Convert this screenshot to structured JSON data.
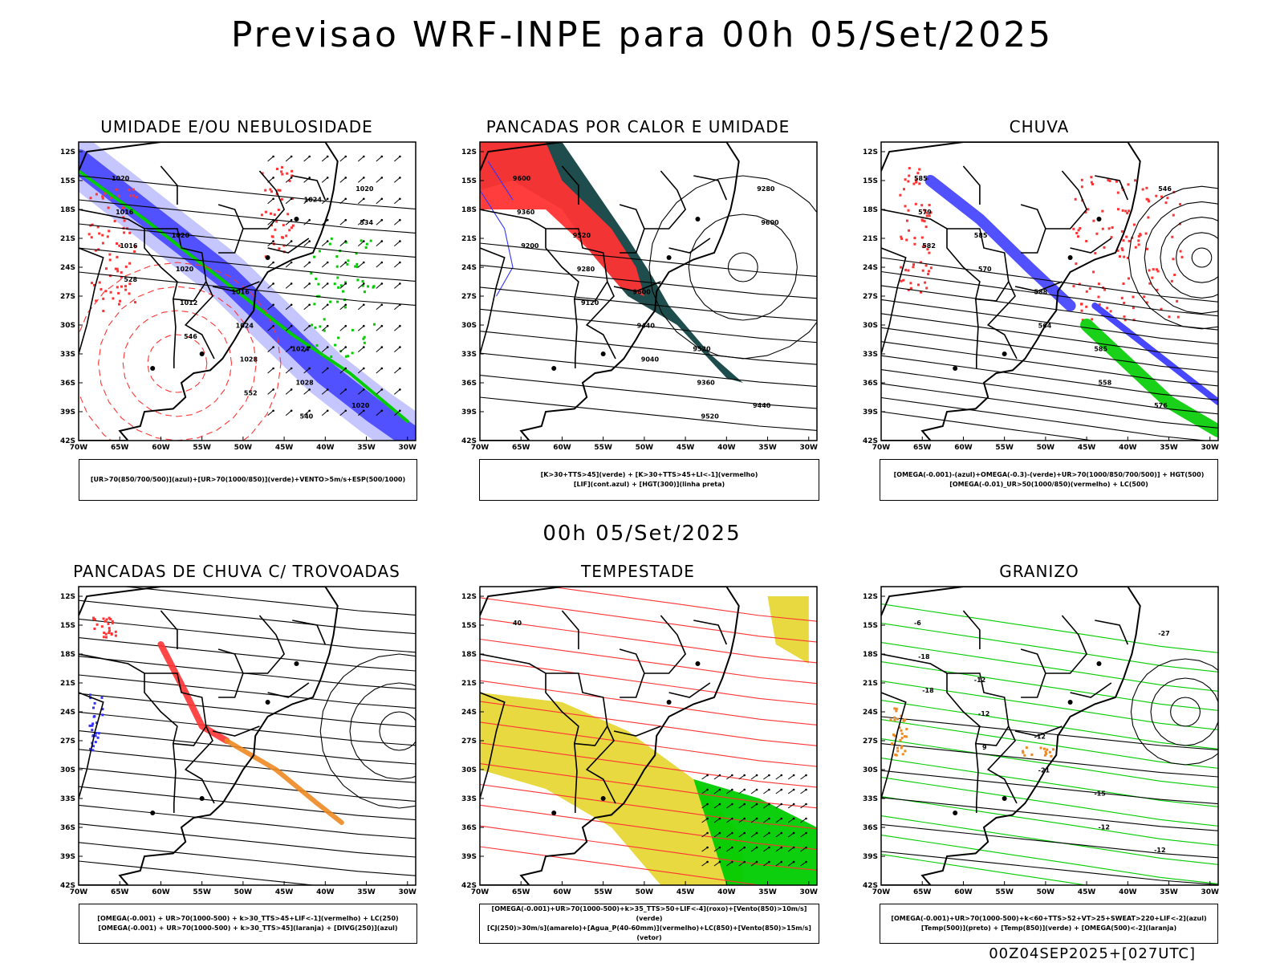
{
  "header": {
    "title": "Previsao WRF-INPE  para 00h 05/Set/2025",
    "mid_title": "00h 05/Set/2025",
    "footer": "00Z04SEP2025+[027UTC]"
  },
  "axes": {
    "lat_labels": [
      "12S",
      "15S",
      "18S",
      "21S",
      "24S",
      "27S",
      "30S",
      "33S",
      "36S",
      "39S",
      "42S"
    ],
    "lon_labels": [
      "70W",
      "65W",
      "60W",
      "55W",
      "50W",
      "45W",
      "40W",
      "35W",
      "30W"
    ]
  },
  "panels": [
    {
      "title": "UMIDADE E/OU NEBULOSIDADE",
      "legend": [
        "[UR>70(850/700/500)](azul)+[UR>70(1000/850)](verde)+VENTO>5m/s+ESP(500/1000)"
      ],
      "contour_labels": [
        "1020",
        "1020",
        "1016",
        "1024",
        "1020",
        "1016",
        "1020",
        "1024",
        "1028",
        "1020",
        "1016",
        "1012",
        "1028",
        "540",
        "534",
        "528",
        "546",
        "552",
        "1024"
      ]
    },
    {
      "title": "PANCADAS POR CALOR E UMIDADE",
      "legend": [
        "[K>30+TTS>45](verde) + [K>30+TTS>45+LI<-1](vermelho)",
        "[LIF](cont.azul) + [HGT(300)](linha preta)"
      ],
      "contour_labels": [
        "9600",
        "9520",
        "9600",
        "9520",
        "9440",
        "9360",
        "9280",
        "9440",
        "9360",
        "9280",
        "9200",
        "9120",
        "9040",
        "9520",
        "9600"
      ]
    },
    {
      "title": "CHUVA",
      "legend": [
        "[OMEGA(-0.001)-(azul)+OMEGA(-0.3)-(verde)+UR>70(1000/850/700/500)] + HGT(500)",
        "[OMEGA(-0.01)_UR>50(1000/850)(vermelho) + LC(500)"
      ],
      "contour_labels": [
        "585",
        "585",
        "588",
        "585",
        "576",
        "579",
        "570",
        "564",
        "558",
        "546",
        "582"
      ]
    },
    {
      "title": "PANCADAS DE CHUVA C/ TROVOADAS",
      "legend": [
        "[OMEGA(-0.001) + UR>70(1000-500) + k>30_TTS>45+LIF<-1](vermelho) + LC(250)",
        "[OMEGA(-0.001) + UR>70(1000-500) + k>30_TTS>45](laranja) + [DIVG(250)](azul)"
      ],
      "contour_labels": []
    },
    {
      "title": "TEMPESTADE",
      "legend": [
        "[OMEGA(-0.001)+UR>70(1000-500)+k>35_TTS>50+LIF<-4](roxo)+[Vento(850)>10m/s](verde)",
        "[CJ(250)>30m/s](amarelo)+[Agua_P(40-60mm)](vermelho)+LC(850)+[Vento(850)>15m/s](vetor)"
      ],
      "contour_labels": [
        "40"
      ]
    },
    {
      "title": "GRANIZO",
      "legend": [
        "[OMEGA(-0.001)+UR>70(1000-500)+k<60+TTS>52+VT>25+SWEAT>220+LIF<-2](azul)",
        "[Temp(500)](preto) + [Temp(850)](verde) + [OMEGA(500)<-2](laranja)"
      ],
      "contour_labels": [
        "-6",
        "-12",
        "-12",
        "-15",
        "-12",
        "-18",
        "-12",
        "-21",
        "-12",
        "-27",
        "-18",
        "9"
      ]
    }
  ],
  "colors": {
    "blue": "#3333ff",
    "light_blue": "#b8b8ff",
    "green": "#00cc00",
    "red": "#ff3333",
    "orange": "#ee8822",
    "yellow": "#e6d52b",
    "dark_teal": "#1f4d4d",
    "black": "#000000"
  }
}
